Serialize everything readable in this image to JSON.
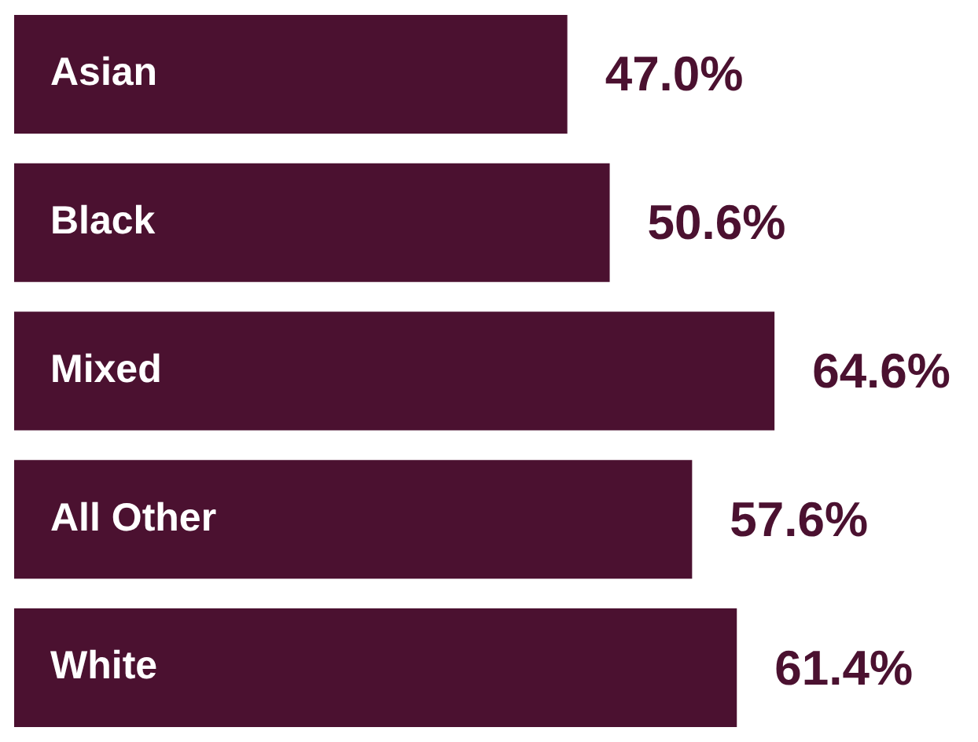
{
  "chart_data": {
    "type": "bar",
    "orientation": "horizontal",
    "categories": [
      "Asian",
      "Black",
      "Mixed",
      "All Other",
      "White"
    ],
    "values": [
      47.0,
      50.6,
      64.6,
      57.6,
      61.4
    ],
    "value_labels": [
      "47.0%",
      "50.6%",
      "64.6%",
      "57.6%",
      "61.4%"
    ],
    "color": "#4b1130"
  }
}
